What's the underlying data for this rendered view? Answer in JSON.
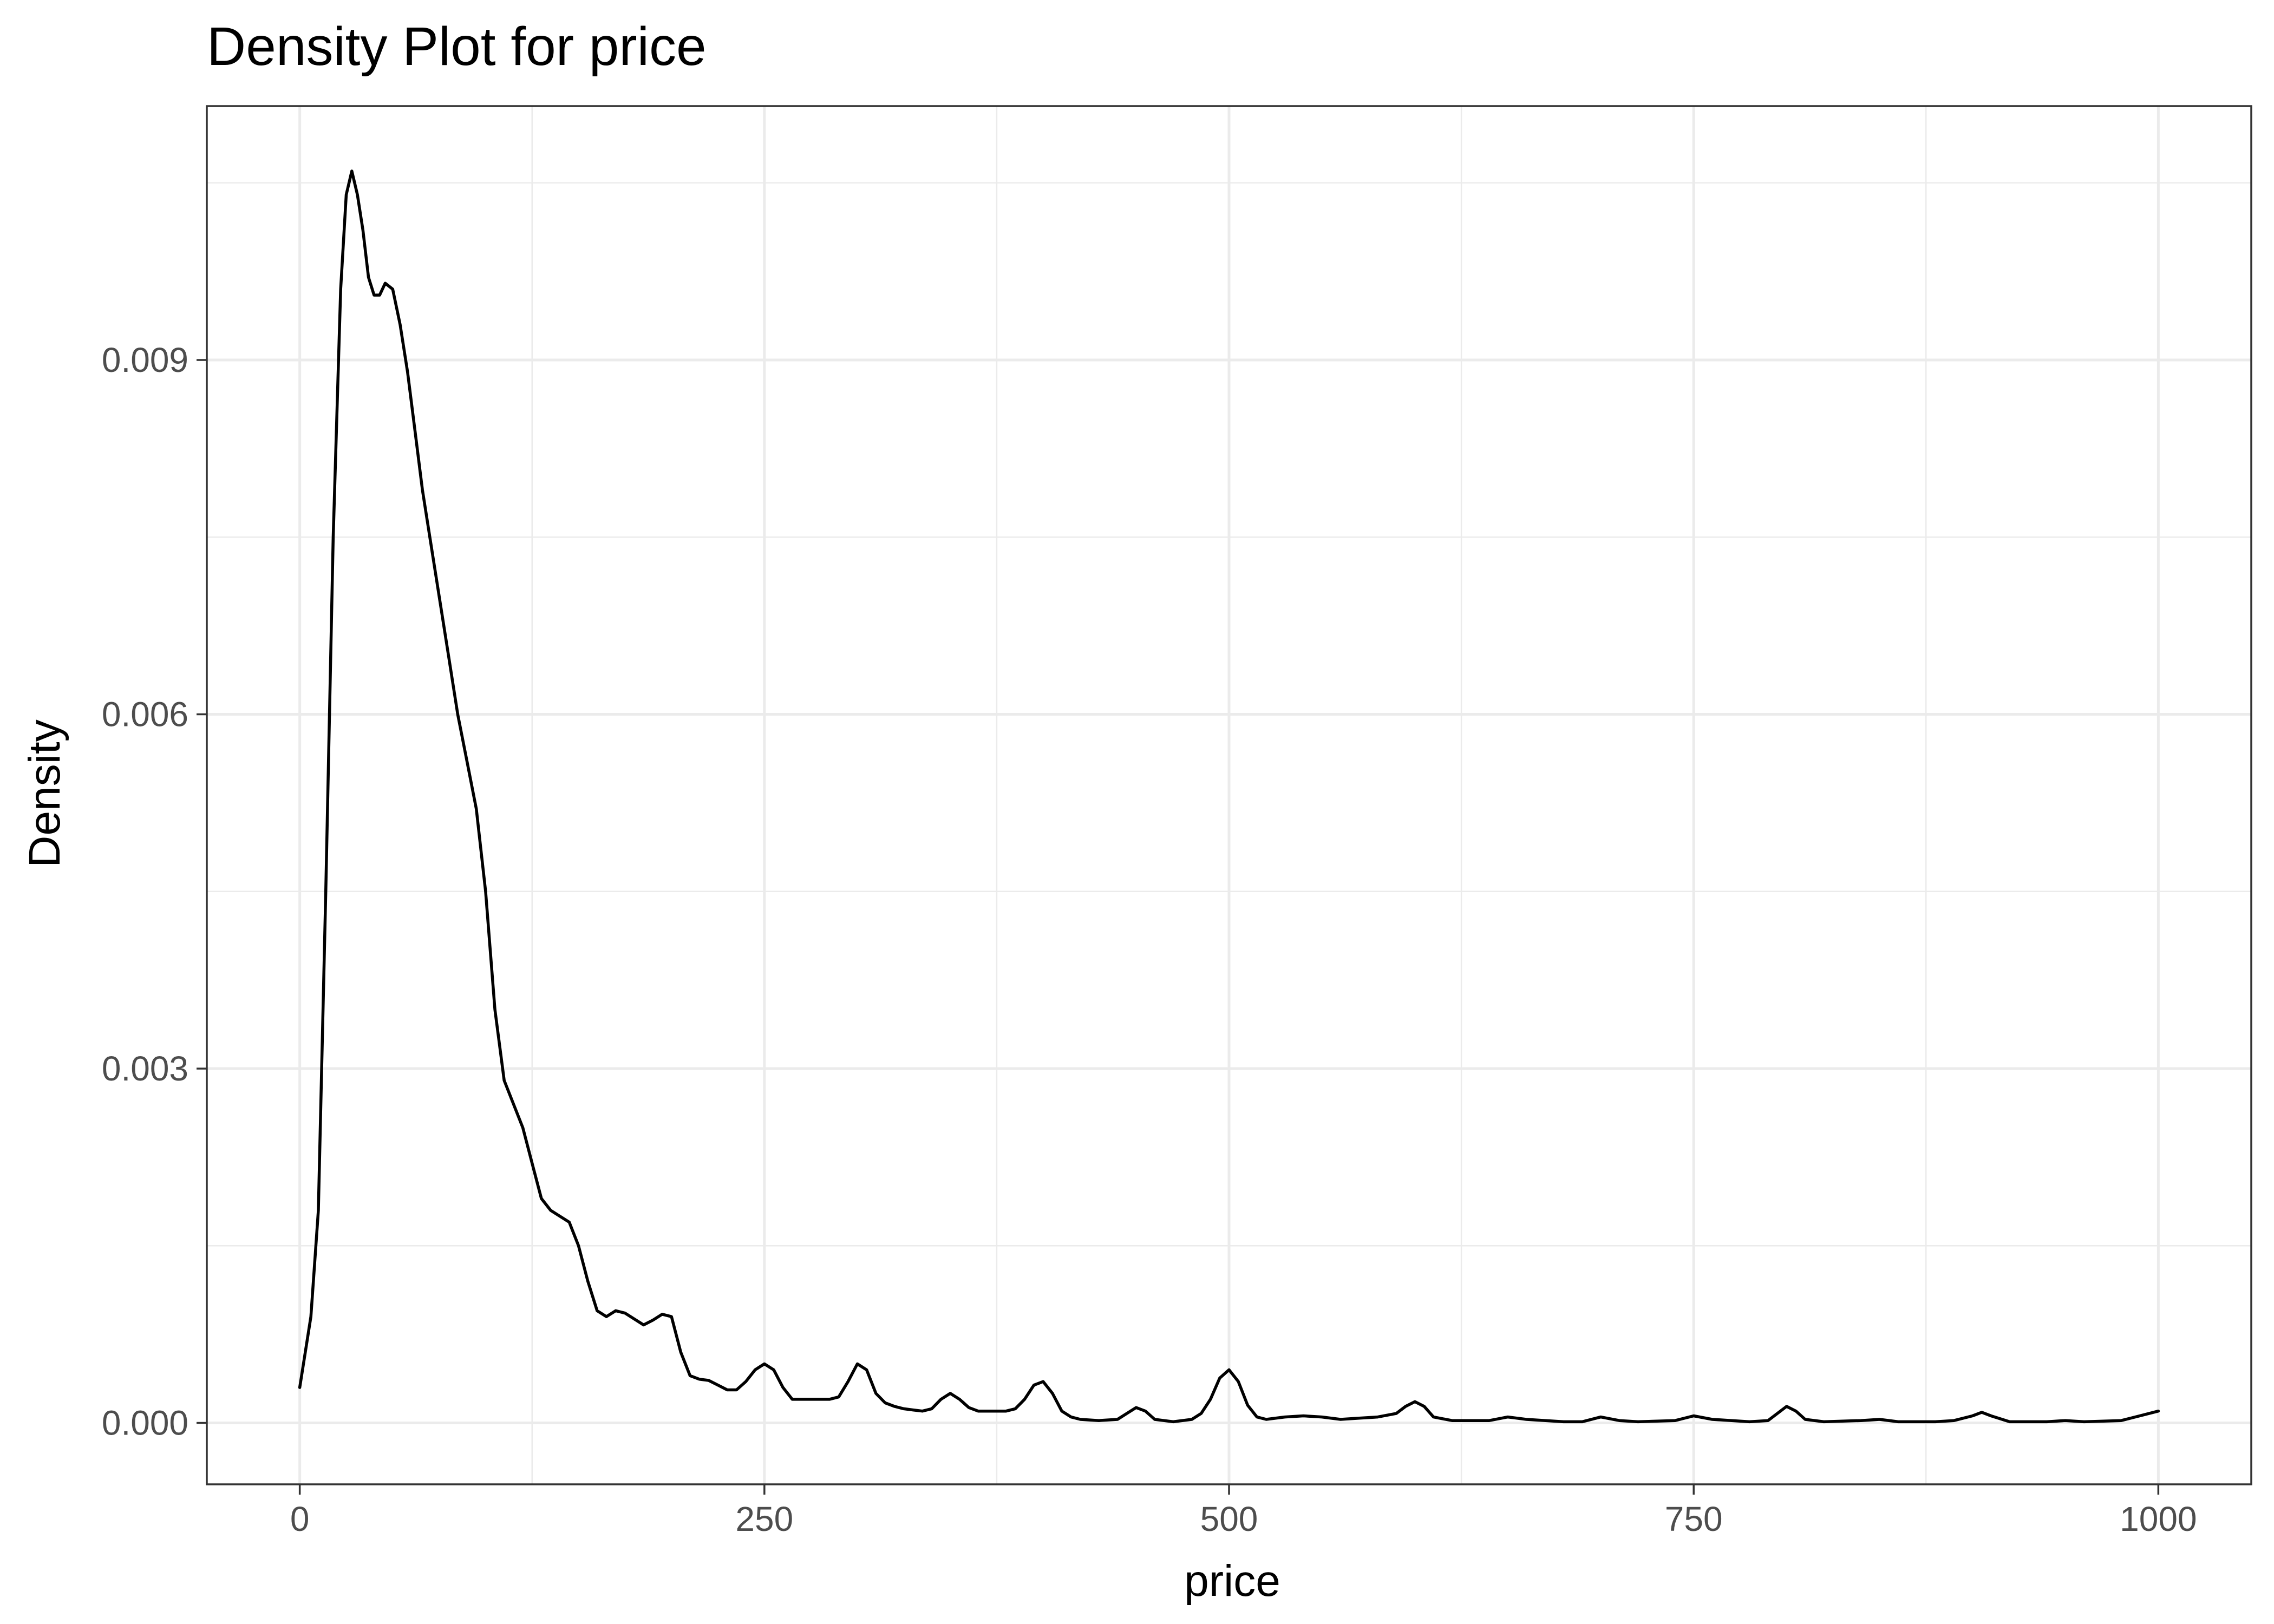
{
  "chart_data": {
    "type": "line",
    "title": "Density Plot for  price",
    "xlabel": "price",
    "ylabel": "Density",
    "xlim": [
      -50,
      1050
    ],
    "ylim": [
      -0.00052,
      0.01115
    ],
    "x_ticks": [
      0,
      250,
      500,
      750,
      1000
    ],
    "x_tick_labels": [
      "0",
      "250",
      "500",
      "750",
      "1000"
    ],
    "y_ticks": [
      0.0,
      0.003,
      0.006,
      0.009
    ],
    "y_tick_labels": [
      "0.000",
      "0.003",
      "0.006",
      "0.009"
    ],
    "x_minor_ticks": [
      125,
      375,
      625,
      875
    ],
    "y_minor_ticks": [
      0.0015,
      0.0045,
      0.0075,
      0.0105
    ],
    "grid": true,
    "legend": "none",
    "colors": {
      "line": "#000000",
      "grid": "#ebebeb",
      "panel_border": "#333333",
      "tick_text": "#4d4d4d"
    },
    "series": [
      {
        "x": [
          0,
          3,
          6,
          10,
          14,
          18,
          22,
          25,
          28,
          31,
          34,
          37,
          40,
          43,
          46,
          50,
          54,
          58,
          62,
          66,
          70,
          75,
          80,
          85,
          90,
          95,
          100,
          105,
          110,
          115,
          120,
          125,
          130,
          135,
          140,
          145,
          150,
          155,
          160,
          165,
          170,
          175,
          180,
          185,
          190,
          195,
          200,
          205,
          210,
          215,
          220,
          225,
          230,
          235,
          240,
          245,
          250,
          255,
          260,
          265,
          270,
          275,
          280,
          285,
          290,
          295,
          300,
          305,
          310,
          315,
          320,
          325,
          330,
          335,
          340,
          345,
          350,
          355,
          360,
          365,
          370,
          375,
          380,
          385,
          390,
          395,
          400,
          405,
          410,
          415,
          420,
          430,
          440,
          445,
          450,
          455,
          460,
          470,
          480,
          485,
          490,
          495,
          500,
          505,
          510,
          515,
          520,
          530,
          540,
          550,
          560,
          570,
          580,
          590,
          595,
          600,
          605,
          610,
          620,
          640,
          650,
          660,
          680,
          690,
          700,
          710,
          720,
          740,
          750,
          760,
          780,
          790,
          795,
          800,
          805,
          810,
          820,
          840,
          850,
          860,
          880,
          890,
          900,
          905,
          910,
          920,
          940,
          950,
          960,
          980,
          990,
          1000
        ],
        "y": [
          0.0003,
          0.0006,
          0.0009,
          0.0018,
          0.0045,
          0.0075,
          0.0096,
          0.0104,
          0.0106,
          0.0104,
          0.0101,
          0.0097,
          0.00955,
          0.00955,
          0.00965,
          0.0096,
          0.0093,
          0.0089,
          0.0084,
          0.0079,
          0.0075,
          0.007,
          0.0065,
          0.006,
          0.0056,
          0.0052,
          0.0045,
          0.0035,
          0.0029,
          0.0027,
          0.0025,
          0.0022,
          0.0019,
          0.0018,
          0.00175,
          0.0017,
          0.0015,
          0.0012,
          0.00095,
          0.0009,
          0.00095,
          0.00093,
          0.00088,
          0.00083,
          0.00087,
          0.00092,
          0.0009,
          0.0006,
          0.0004,
          0.00037,
          0.00036,
          0.00032,
          0.00028,
          0.00028,
          0.00035,
          0.00045,
          0.0005,
          0.00045,
          0.0003,
          0.0002,
          0.0002,
          0.0002,
          0.0002,
          0.0002,
          0.00022,
          0.00035,
          0.0005,
          0.00045,
          0.00025,
          0.00017,
          0.00014,
          0.00012,
          0.00011,
          0.0001,
          0.00012,
          0.0002,
          0.00025,
          0.0002,
          0.00013,
          0.0001,
          0.0001,
          0.0001,
          0.0001,
          0.00012,
          0.0002,
          0.00032,
          0.00035,
          0.00025,
          0.0001,
          5e-05,
          3e-05,
          2e-05,
          3e-05,
          8e-05,
          0.00013,
          0.0001,
          3e-05,
          1e-05,
          3e-05,
          8e-05,
          0.0002,
          0.00038,
          0.00045,
          0.00035,
          0.00015,
          5e-05,
          3e-05,
          5e-05,
          6e-05,
          5e-05,
          3e-05,
          4e-05,
          5e-05,
          8e-05,
          0.00014,
          0.00018,
          0.00014,
          5e-05,
          2e-05,
          2e-05,
          5e-05,
          3e-05,
          1e-05,
          1e-05,
          5e-05,
          2e-05,
          1e-05,
          2e-05,
          6e-05,
          3e-05,
          1e-05,
          2e-05,
          8e-05,
          0.00014,
          0.0001,
          3e-05,
          1e-05,
          2e-05,
          3e-05,
          1e-05,
          1e-05,
          2e-05,
          6e-05,
          9e-05,
          6e-05,
          1e-05,
          1e-05,
          2e-05,
          1e-05,
          2e-05,
          6e-05,
          0.0001
        ]
      }
    ]
  }
}
